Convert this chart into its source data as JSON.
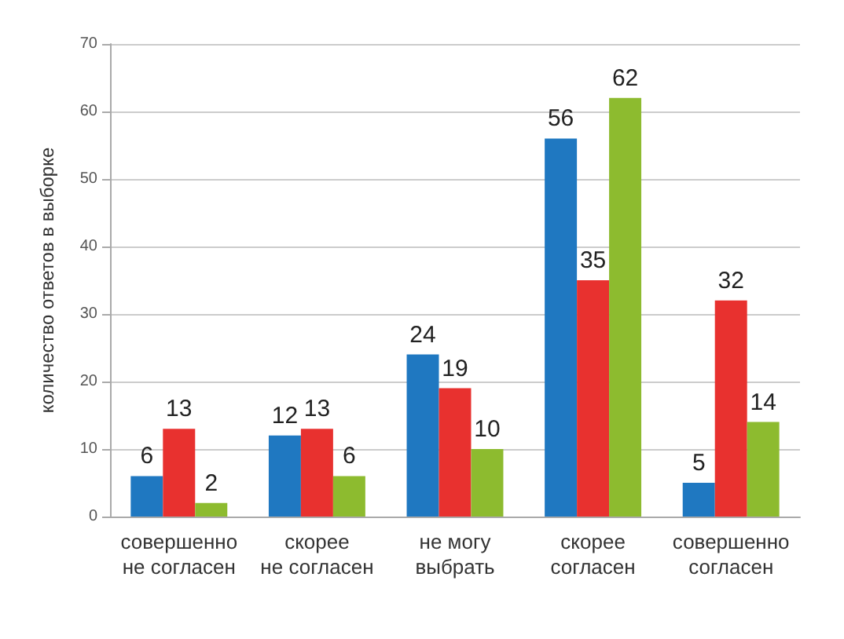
{
  "chart_data": {
    "type": "bar",
    "ylabel": "количество ответов в выборке",
    "categories": [
      "совершенно\nне согласен",
      "скорее\nне согласен",
      "не могу\nвыбрать",
      "скорее\nсогласен",
      "совершенно\nсогласен"
    ],
    "series": [
      {
        "color": "#1f78c1",
        "values": [
          6,
          12,
          24,
          56,
          5
        ]
      },
      {
        "color": "#e8312f",
        "values": [
          13,
          13,
          19,
          35,
          32
        ]
      },
      {
        "color": "#8dbb2f",
        "values": [
          2,
          6,
          10,
          62,
          14
        ]
      }
    ],
    "ylim": [
      0,
      70
    ],
    "yticks": [
      0,
      10,
      20,
      30,
      40,
      50,
      60,
      70
    ],
    "grid": "y",
    "data_labels": true
  }
}
